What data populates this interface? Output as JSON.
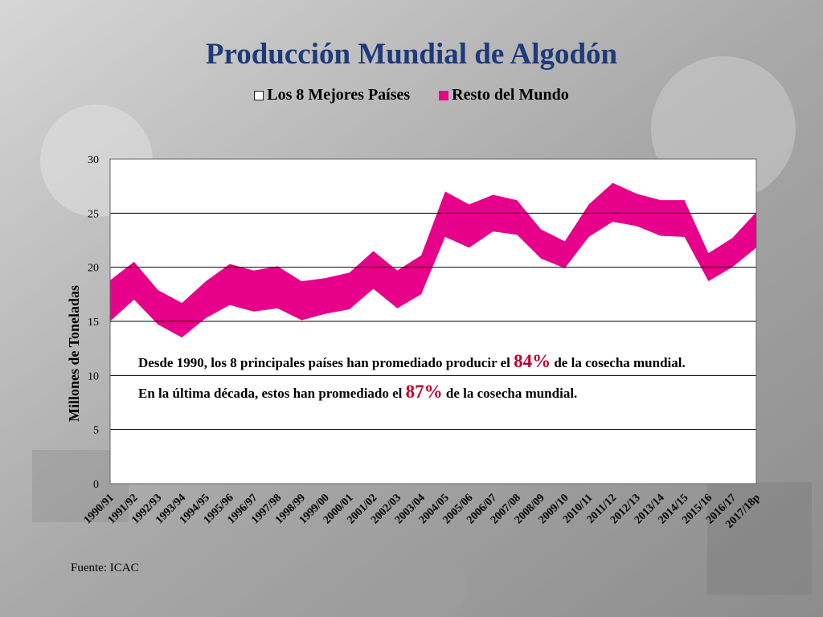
{
  "title": "Producción Mundial de Algodón",
  "legend": {
    "top8": "Los 8 Mejores Países",
    "rest": "Resto del Mundo"
  },
  "colors": {
    "rest": "#e6008a",
    "top8": "#ffffff",
    "title": "#1f3a7a",
    "highlight": "#c0002a"
  },
  "annotation": {
    "line1_a": "Desde 1990, los 8 principales países han promediado producir el ",
    "line1_pct": "84%",
    "line1_b": " de la cosecha mundial.",
    "line2_a": "En la última década, estos han promediado el ",
    "line2_pct": "87%",
    "line2_b": " de la cosecha mundial."
  },
  "source": "Fuente: ICAC",
  "chart_data": {
    "type": "area",
    "stacked": true,
    "title": "Producción Mundial de Algodón",
    "ylabel": "Millones de Toneladas",
    "xlabel": "",
    "ylim": [
      0,
      30
    ],
    "yticks": [
      0,
      5,
      10,
      15,
      20,
      25,
      30
    ],
    "grid": true,
    "legend_position": "top",
    "categories": [
      "1990/91",
      "1991/92",
      "1992/93",
      "1993/94",
      "1994/95",
      "1995/96",
      "1996/97",
      "1997/98",
      "1998/99",
      "1999/00",
      "2000/01",
      "2001/02",
      "2002/03",
      "2003/04",
      "2004/05",
      "2005/06",
      "2006/07",
      "2007/08",
      "2008/09",
      "2009/10",
      "2010/11",
      "2011/12",
      "2012/13",
      "2013/14",
      "2014/15",
      "2015/16",
      "2016/17",
      "2017/18p"
    ],
    "series": [
      {
        "name": "Los 8 Mejores Países",
        "values": [
          15.0,
          17.0,
          14.7,
          13.5,
          15.3,
          16.5,
          15.9,
          16.2,
          15.1,
          15.7,
          16.1,
          18.0,
          16.2,
          17.5,
          22.8,
          21.8,
          23.3,
          23.0,
          20.8,
          19.9,
          22.8,
          24.2,
          23.8,
          22.9,
          22.8,
          18.7,
          20.0,
          21.8
        ]
      },
      {
        "name": "Resto del Mundo",
        "values": [
          3.8,
          3.5,
          3.2,
          3.2,
          3.4,
          3.8,
          3.8,
          3.9,
          3.6,
          3.3,
          3.4,
          3.5,
          3.5,
          3.6,
          4.2,
          4.0,
          3.4,
          3.2,
          2.7,
          2.5,
          3.0,
          3.6,
          3.0,
          3.3,
          3.4,
          2.6,
          2.7,
          3.3
        ]
      }
    ]
  }
}
